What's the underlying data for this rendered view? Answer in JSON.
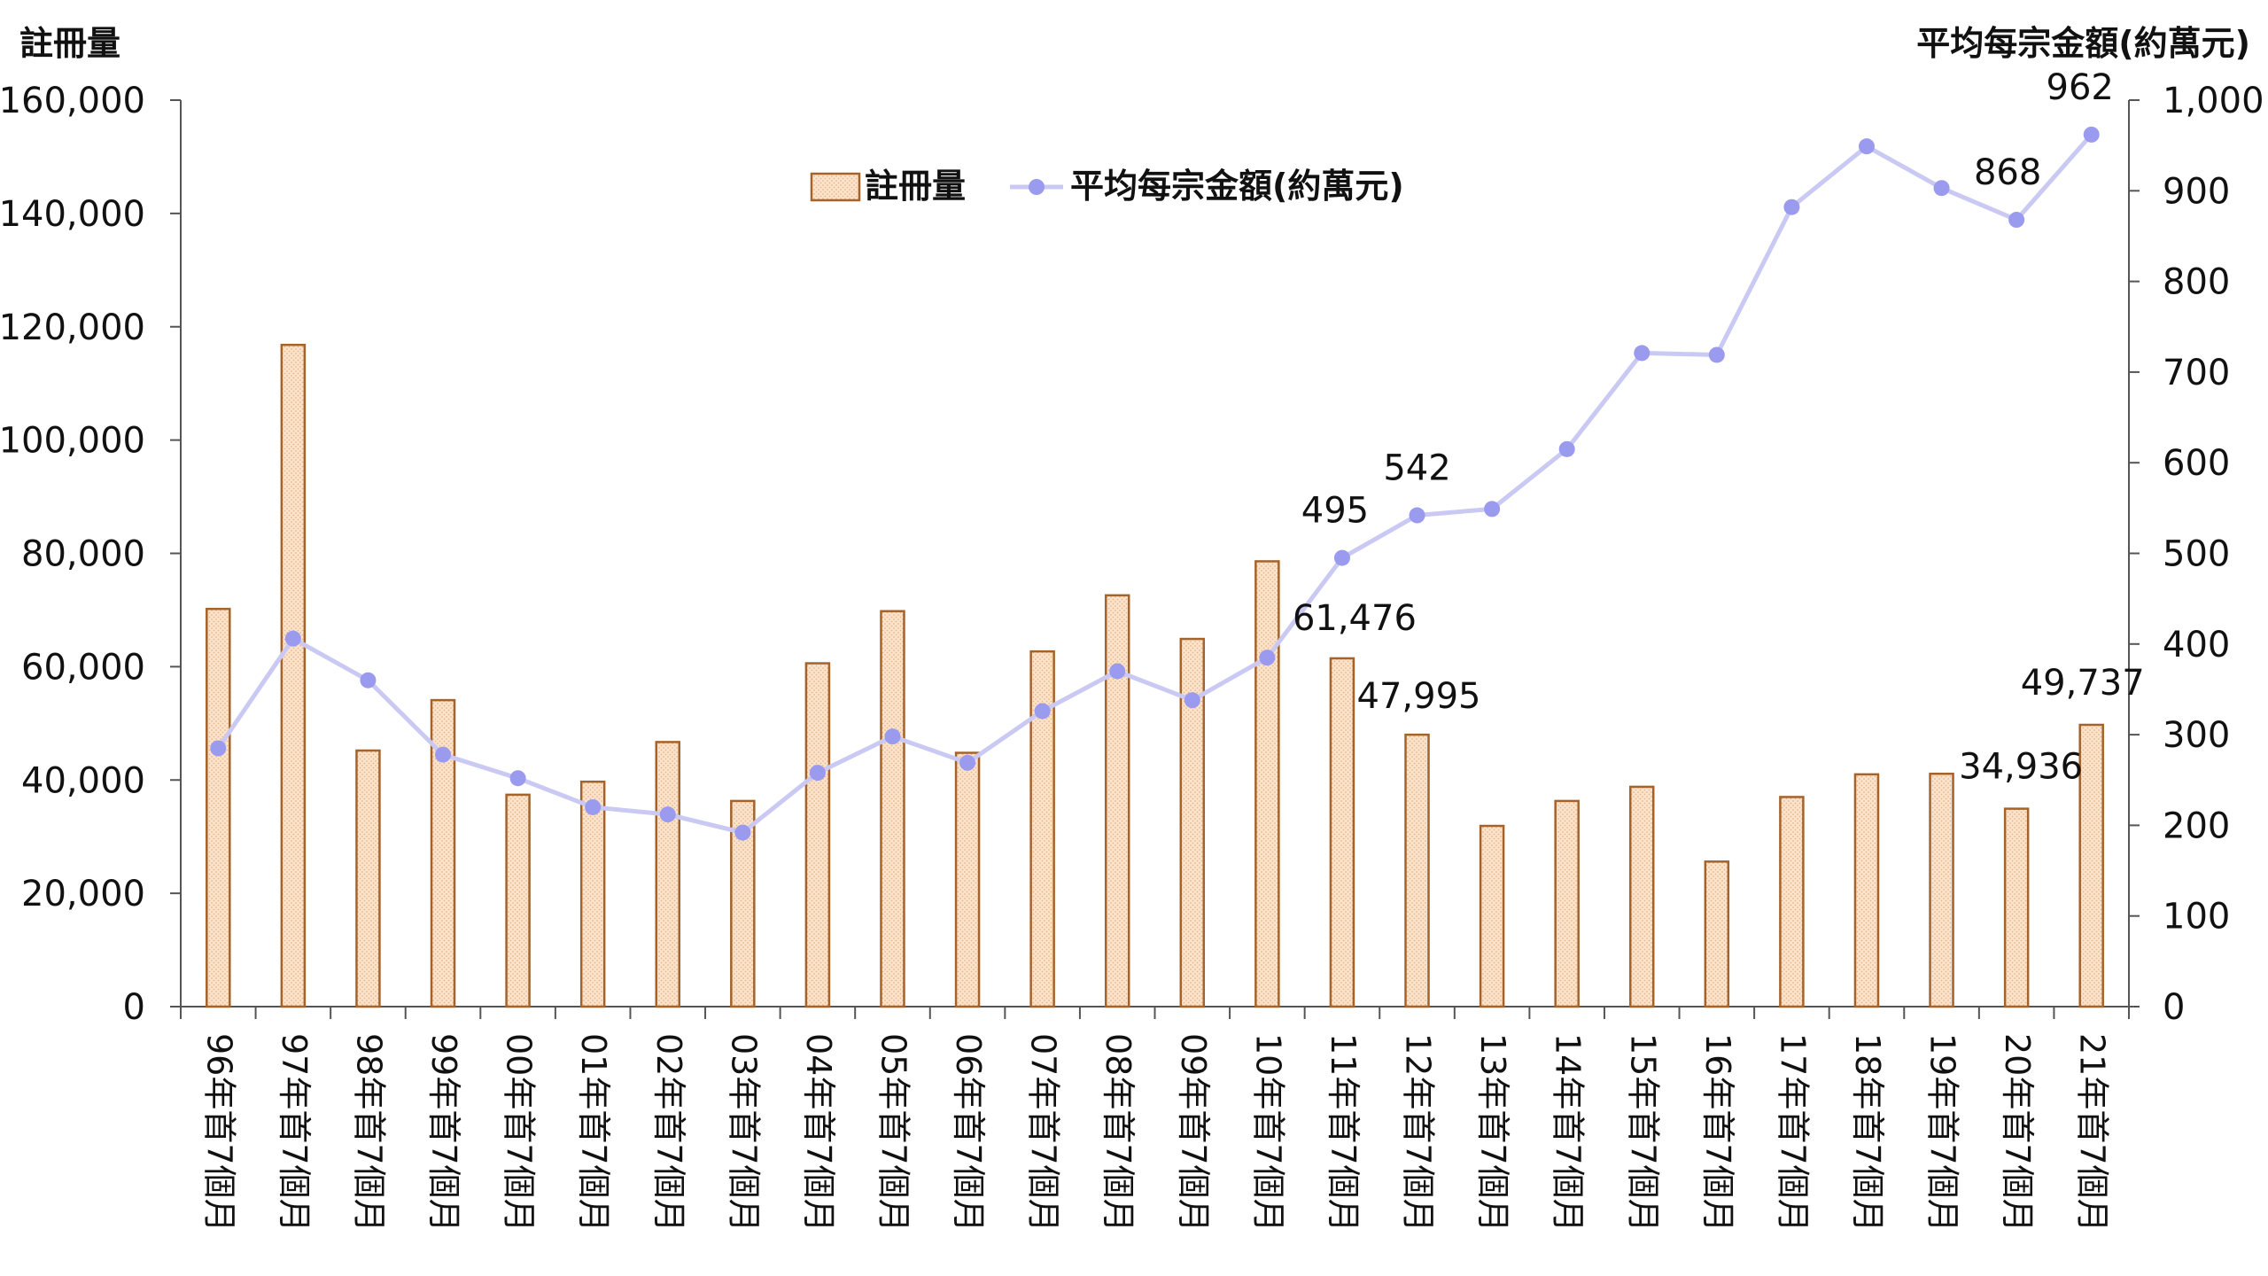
{
  "chart_data": {
    "type": "bar+line",
    "left_axis_title": "註冊量",
    "right_axis_title": "平均每宗金額(約萬元)",
    "categories": [
      "96年首7個月",
      "97年首7個月",
      "98年首7個月",
      "99年首7個月",
      "00年首7個月",
      "01年首7個月",
      "02年首7個月",
      "03年首7個月",
      "04年首7個月",
      "05年首7個月",
      "06年首7個月",
      "07年首7個月",
      "08年首7個月",
      "09年首7個月",
      "10年首7個月",
      "11年首7個月",
      "12年首7個月",
      "13年首7個月",
      "14年首7個月",
      "15年首7個月",
      "16年首7個月",
      "17年首7個月",
      "18年首7個月",
      "19年首7個月",
      "20年首7個月",
      "21年首7個月"
    ],
    "left_ylim": [
      0,
      160000
    ],
    "left_ticks": [
      "0",
      "20,000",
      "40,000",
      "60,000",
      "80,000",
      "100,000",
      "120,000",
      "140,000",
      "160,000"
    ],
    "right_ylim": [
      0,
      1000
    ],
    "right_ticks": [
      "0",
      "100",
      "200",
      "300",
      "400",
      "500",
      "600",
      "700",
      "800",
      "900",
      "1,000"
    ],
    "legend_position": "top-center",
    "grid": false,
    "series": [
      {
        "name": "註冊量",
        "kind": "bar",
        "axis": "left",
        "color": "#a5632a",
        "fill": "#fbe3cc",
        "values": [
          70200,
          116800,
          45200,
          54100,
          37400,
          39700,
          46700,
          36300,
          60600,
          69800,
          44800,
          62700,
          72600,
          64900,
          78600,
          61476,
          47995,
          31900,
          36300,
          38800,
          25600,
          37000,
          41000,
          41100,
          34936,
          49737
        ],
        "data_labels": {
          "15": "61,476",
          "16": "47,995",
          "24": "34,936",
          "25": "49,737"
        }
      },
      {
        "name": "平均每宗金額(約萬元)",
        "kind": "line",
        "axis": "right",
        "color": "#c9c9f4",
        "marker_color": "#9a9aee",
        "values": [
          285,
          406,
          360,
          278,
          252,
          220,
          212,
          192,
          258,
          298,
          269,
          326,
          370,
          338,
          385,
          495,
          542,
          549,
          615,
          721,
          719,
          882,
          949,
          903,
          868,
          962
        ],
        "data_labels": {
          "15": "495",
          "16": "542",
          "24": "868",
          "25": "962"
        }
      }
    ]
  }
}
